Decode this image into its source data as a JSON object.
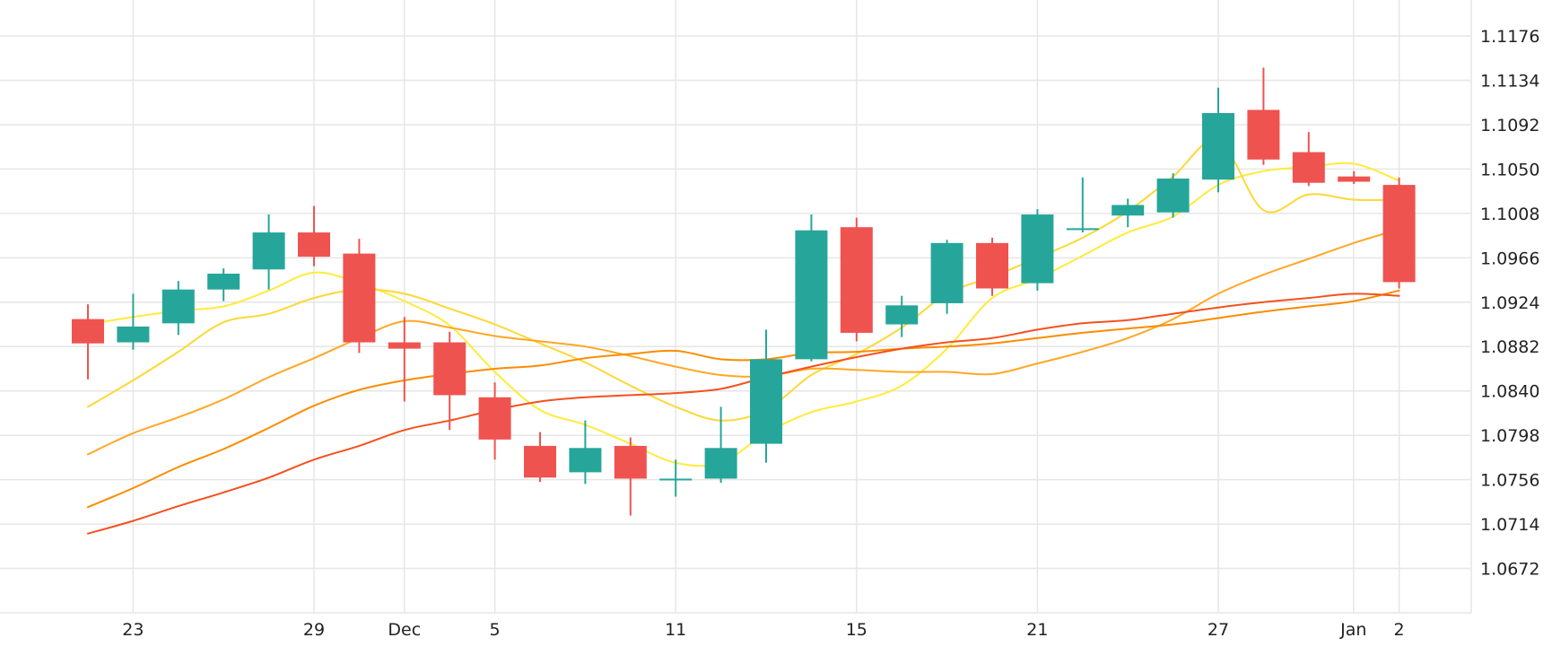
{
  "chart_data": {
    "type": "candlestick",
    "title": "",
    "xlabel": "",
    "ylabel": "",
    "ylim": [
      1.063,
      1.121
    ],
    "y_ticks": [
      "1.1176",
      "1.1134",
      "1.1092",
      "1.1050",
      "1.1008",
      "1.0966",
      "1.0924",
      "1.0882",
      "1.0840",
      "1.0798",
      "1.0756",
      "1.0714",
      "1.0672"
    ],
    "x_ticks": [
      {
        "label": "23",
        "index": 1
      },
      {
        "label": "29",
        "index": 5
      },
      {
        "label": "Dec",
        "index": 7
      },
      {
        "label": "5",
        "index": 9
      },
      {
        "label": "11",
        "index": 13
      },
      {
        "label": "15",
        "index": 17
      },
      {
        "label": "21",
        "index": 21
      },
      {
        "label": "27",
        "index": 25
      },
      {
        "label": "Jan",
        "index": 28
      },
      {
        "label": "2",
        "index": 29
      }
    ],
    "up_color": "#26a69a",
    "down_color": "#ef5350",
    "candles": [
      {
        "o": 1.0908,
        "h": 1.0922,
        "l": 1.0851,
        "c": 1.0885
      },
      {
        "o": 1.0886,
        "h": 1.0932,
        "l": 1.0879,
        "c": 1.0901
      },
      {
        "o": 1.0904,
        "h": 1.0944,
        "l": 1.0893,
        "c": 1.0936
      },
      {
        "o": 1.0936,
        "h": 1.0956,
        "l": 1.0925,
        "c": 1.0951
      },
      {
        "o": 1.0955,
        "h": 1.1007,
        "l": 1.0936,
        "c": 1.099
      },
      {
        "o": 1.099,
        "h": 1.1015,
        "l": 1.0958,
        "c": 1.0967
      },
      {
        "o": 1.097,
        "h": 1.0984,
        "l": 1.0876,
        "c": 1.0886
      },
      {
        "o": 1.0886,
        "h": 1.091,
        "l": 1.083,
        "c": 1.088
      },
      {
        "o": 1.0886,
        "h": 1.0896,
        "l": 1.0803,
        "c": 1.0836
      },
      {
        "o": 1.0834,
        "h": 1.0848,
        "l": 1.0775,
        "c": 1.0794
      },
      {
        "o": 1.0788,
        "h": 1.0801,
        "l": 1.0754,
        "c": 1.0758
      },
      {
        "o": 1.0763,
        "h": 1.0812,
        "l": 1.0752,
        "c": 1.0786
      },
      {
        "o": 1.0788,
        "h": 1.0796,
        "l": 1.0722,
        "c": 1.0757
      },
      {
        "o": 1.0757,
        "h": 1.0775,
        "l": 1.074,
        "c": 1.0757
      },
      {
        "o": 1.0757,
        "h": 1.0825,
        "l": 1.0753,
        "c": 1.0786
      },
      {
        "o": 1.079,
        "h": 1.0898,
        "l": 1.0772,
        "c": 1.087
      },
      {
        "o": 1.087,
        "h": 1.1007,
        "l": 1.0868,
        "c": 1.0992
      },
      {
        "o": 1.0995,
        "h": 1.1004,
        "l": 1.0887,
        "c": 1.0895
      },
      {
        "o": 1.0903,
        "h": 1.093,
        "l": 1.0891,
        "c": 1.0921
      },
      {
        "o": 1.0923,
        "h": 1.0983,
        "l": 1.0913,
        "c": 1.098
      },
      {
        "o": 1.098,
        "h": 1.0985,
        "l": 1.093,
        "c": 1.0937
      },
      {
        "o": 1.0942,
        "h": 1.1012,
        "l": 1.0935,
        "c": 1.1007
      },
      {
        "o": 1.0994,
        "h": 1.1042,
        "l": 1.099,
        "c": 1.0994
      },
      {
        "o": 1.1006,
        "h": 1.1022,
        "l": 1.0995,
        "c": 1.1016
      },
      {
        "o": 1.1009,
        "h": 1.1046,
        "l": 1.1004,
        "c": 1.1041
      },
      {
        "o": 1.104,
        "h": 1.1127,
        "l": 1.1028,
        "c": 1.1103
      },
      {
        "o": 1.1106,
        "h": 1.1146,
        "l": 1.1054,
        "c": 1.1059
      },
      {
        "o": 1.1066,
        "h": 1.1085,
        "l": 1.1034,
        "c": 1.1037
      },
      {
        "o": 1.1043,
        "h": 1.1048,
        "l": 1.1036,
        "c": 1.1038
      },
      {
        "o": 1.1035,
        "h": 1.1042,
        "l": 1.0937,
        "c": 1.0943
      }
    ],
    "moving_averages": [
      {
        "color": "#ffeb3b",
        "start": 0,
        "values": [
          1.0903,
          1.091,
          1.0916,
          1.092,
          1.0935,
          1.0952,
          1.0942,
          1.0925,
          1.0902,
          1.0858,
          1.0822,
          1.0808,
          1.079,
          1.0772,
          1.0772,
          1.08,
          1.082,
          1.083,
          1.0845,
          1.088,
          1.0928,
          1.0946,
          1.0968,
          1.099,
          1.1005,
          1.1035,
          1.1048,
          1.1052,
          1.1055,
          1.1039
        ]
      },
      {
        "color": "#fdd835",
        "start": 0,
        "values": [
          1.0825,
          1.085,
          1.0877,
          1.0905,
          1.0913,
          1.0928,
          1.0936,
          1.0932,
          1.0918,
          1.0903,
          1.0885,
          1.0867,
          1.0845,
          1.0825,
          1.0812,
          1.0822,
          1.0855,
          1.0875,
          1.09,
          1.0932,
          1.0948,
          1.0966,
          1.0985,
          1.101,
          1.1043,
          1.1077,
          1.1011,
          1.1026,
          1.1021,
          1.1021
        ]
      },
      {
        "color": "#ffa726",
        "start": 0,
        "values": [
          1.078,
          1.08,
          1.0815,
          1.0832,
          1.0853,
          1.0871,
          1.089,
          1.0906,
          1.09,
          1.0892,
          1.0887,
          1.0882,
          1.0873,
          1.0863,
          1.0855,
          1.0854,
          1.0861,
          1.086,
          1.0858,
          1.0858,
          1.0856,
          1.0866,
          1.0877,
          1.089,
          1.0908,
          1.0932,
          1.095,
          1.0965,
          1.098,
          1.0993
        ]
      },
      {
        "color": "#fb8c00",
        "start": 0,
        "values": [
          1.073,
          1.0748,
          1.0768,
          1.0785,
          1.0805,
          1.0826,
          1.0841,
          1.085,
          1.0856,
          1.0861,
          1.0864,
          1.0871,
          1.0875,
          1.0878,
          1.087,
          1.087,
          1.0876,
          1.0877,
          1.088,
          1.0882,
          1.0885,
          1.089,
          1.0895,
          1.0899,
          1.0903,
          1.0909,
          1.0915,
          1.092,
          1.0925,
          1.0935
        ]
      },
      {
        "color": "#f4511e",
        "start": 0,
        "values": [
          1.0705,
          1.0717,
          1.0731,
          1.0744,
          1.0758,
          1.0775,
          1.0788,
          1.0803,
          1.0812,
          1.0822,
          1.083,
          1.0834,
          1.0836,
          1.0838,
          1.0842,
          1.0853,
          1.0863,
          1.0872,
          1.088,
          1.0886,
          1.089,
          1.0898,
          1.0904,
          1.0907,
          1.0913,
          1.0919,
          1.0924,
          1.0928,
          1.0932,
          1.093
        ]
      }
    ],
    "grid": true,
    "legend": "none"
  }
}
